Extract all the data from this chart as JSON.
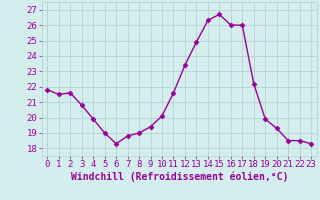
{
  "x": [
    0,
    1,
    2,
    3,
    4,
    5,
    6,
    7,
    8,
    9,
    10,
    11,
    12,
    13,
    14,
    15,
    16,
    17,
    18,
    19,
    20,
    21,
    22,
    23
  ],
  "y": [
    21.8,
    21.5,
    21.6,
    20.8,
    19.9,
    19.0,
    18.3,
    18.8,
    19.0,
    19.4,
    20.1,
    21.6,
    23.4,
    24.9,
    26.3,
    26.7,
    26.0,
    26.0,
    22.2,
    19.9,
    19.3,
    18.5,
    18.5,
    18.3
  ],
  "line_color": "#990099",
  "marker": "D",
  "marker_size": 2.5,
  "bg_color": "#d4eeee",
  "grid_color": "#b0cccc",
  "xlabel": "Windchill (Refroidissement éolien,°C)",
  "xlabel_color": "#990099",
  "tick_color": "#990099",
  "ylim": [
    17.5,
    27.5
  ],
  "xlim": [
    -0.5,
    23.5
  ],
  "yticks": [
    18,
    19,
    20,
    21,
    22,
    23,
    24,
    25,
    26,
    27
  ],
  "xticks": [
    0,
    1,
    2,
    3,
    4,
    5,
    6,
    7,
    8,
    9,
    10,
    11,
    12,
    13,
    14,
    15,
    16,
    17,
    18,
    19,
    20,
    21,
    22,
    23
  ],
  "tick_fontsize": 6.5,
  "xlabel_fontsize": 7.0,
  "linewidth": 1.0
}
